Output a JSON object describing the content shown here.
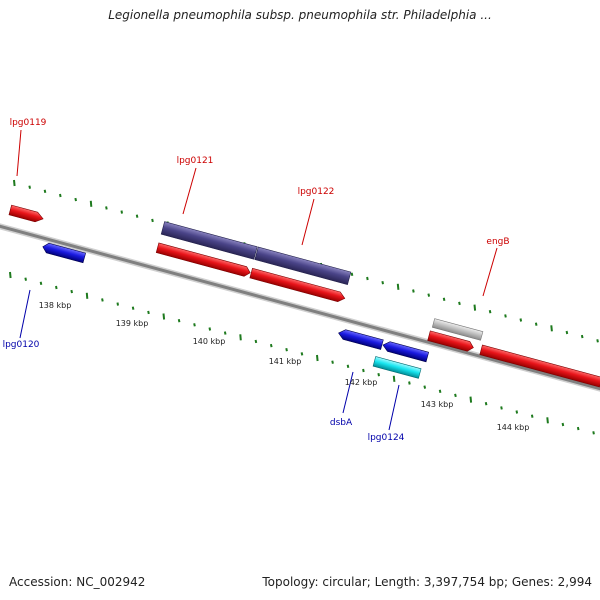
{
  "title": "Legionella pneumophila subsp. pneumophila str. Philadelphia ...",
  "footer": {
    "accession": "Accession: NC_002942",
    "summary": "Topology: circular; Length: 3,397,754 bp; Genes: 2,994"
  },
  "colors": {
    "forward": "#e8141a",
    "reverse": "#1a1ae0",
    "operon": "#4a4488",
    "cyan": "#19e6f0",
    "grey": "#b9b9b9",
    "label_red": "#cc0000",
    "label_blue": "#0000aa",
    "ticks": "#1e7a1e",
    "backbone": "#808080"
  },
  "gene_labels": [
    {
      "text": "lpg0119",
      "strand": "forward"
    },
    {
      "text": "lpg0120",
      "strand": "reverse"
    },
    {
      "text": "lpg0121",
      "strand": "forward"
    },
    {
      "text": "lpg0122",
      "strand": "forward"
    },
    {
      "text": "engB",
      "strand": "forward"
    },
    {
      "text": "dsbA",
      "strand": "reverse"
    },
    {
      "text": "lpg0124",
      "strand": "reverse"
    }
  ],
  "ticks": [
    "138 kbp",
    "139 kbp",
    "140 kbp",
    "141 kbp",
    "142 kbp",
    "143 kbp",
    "144 kbp"
  ]
}
